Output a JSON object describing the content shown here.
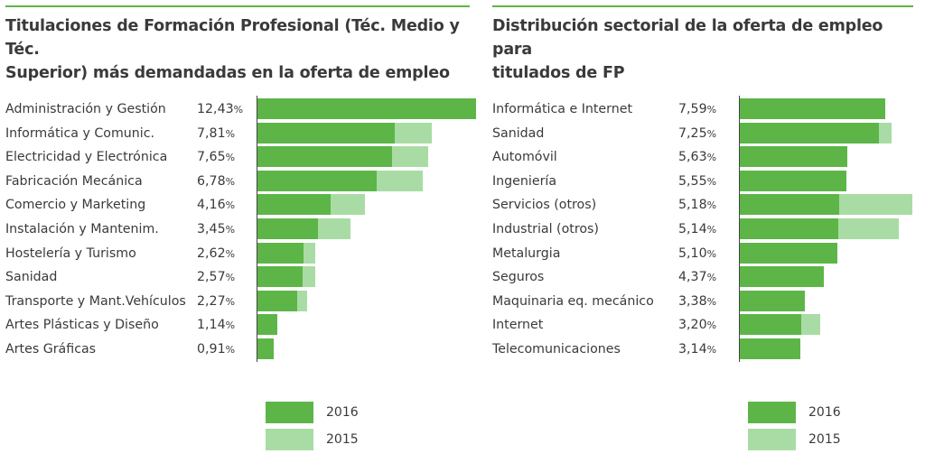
{
  "colors": {
    "y2016": "#5db548",
    "y2015": "#a9dca4",
    "accent_line": "#5db548"
  },
  "legend": {
    "label_2016": "2016",
    "label_2015": "2015"
  },
  "chart_data": [
    {
      "type": "bar",
      "orientation": "horizontal",
      "title": "Titulaciones de Formación Profesional (Téc. Medio y Téc. Superior) más demandadas en la oferta de empleo",
      "title_lines": [
        "Titulaciones de Formación Profesional (Téc. Medio y Téc.",
        "Superior) más demandadas en la oferta de empleo"
      ],
      "categories": [
        "Administración y Gestión",
        "Informática y Comunic.",
        "Electricidad y Electrónica",
        "Fabricación Mecánica",
        "Comercio y Marketing",
        "Instalación y Mantenim.",
        "Hostelería y Turismo",
        "Sanidad",
        "Transporte y Mant.Vehículos",
        "Artes Plásticas y Diseño",
        "Artes Gráficas"
      ],
      "value_labels": [
        "12,43",
        "7,81",
        "7,65",
        "6,78",
        "4,16",
        "3,45",
        "2,62",
        "2,57",
        "2,27",
        "1,14",
        "0,91"
      ],
      "unit": "%",
      "series": [
        {
          "name": "2016",
          "values": [
            12.43,
            7.81,
            7.65,
            6.78,
            4.16,
            3.45,
            2.62,
            2.57,
            2.27,
            1.14,
            0.91
          ]
        },
        {
          "name": "2015",
          "values": [
            12.0,
            9.9,
            9.7,
            9.4,
            6.1,
            5.3,
            3.3,
            3.3,
            2.8,
            1.0,
            0.6
          ]
        }
      ],
      "xlim": [
        0,
        12.43
      ],
      "legend_position": "bottom"
    },
    {
      "type": "bar",
      "orientation": "horizontal",
      "title": "Distribución sectorial de la oferta de empleo para titulados de FP",
      "title_lines": [
        "Distribución sectorial de la oferta de empleo para",
        "titulados de FP"
      ],
      "categories": [
        "Informática e Internet",
        "Sanidad",
        "Automóvil",
        "Ingeniería",
        "Servicios (otros)",
        "Industrial (otros)",
        "Metalurgia",
        "Seguros",
        "Maquinaria eq. mecánico",
        "Internet",
        "Telecomunicaciones"
      ],
      "value_labels": [
        "7,59",
        "7,25",
        "5,63",
        "5,55",
        "5,18",
        "5,14",
        "5,10",
        "4,37",
        "3,38",
        "3,20",
        "3,14"
      ],
      "unit": "%",
      "series": [
        {
          "name": "2016",
          "values": [
            7.59,
            7.25,
            5.63,
            5.55,
            5.18,
            5.14,
            5.1,
            4.37,
            3.38,
            3.2,
            3.14
          ]
        },
        {
          "name": "2015",
          "values": [
            7.5,
            7.9,
            5.2,
            5.0,
            9.0,
            8.3,
            4.9,
            4.2,
            3.1,
            4.2,
            2.8
          ]
        }
      ],
      "xlim": [
        0,
        9.0
      ],
      "legend_position": "bottom"
    }
  ]
}
